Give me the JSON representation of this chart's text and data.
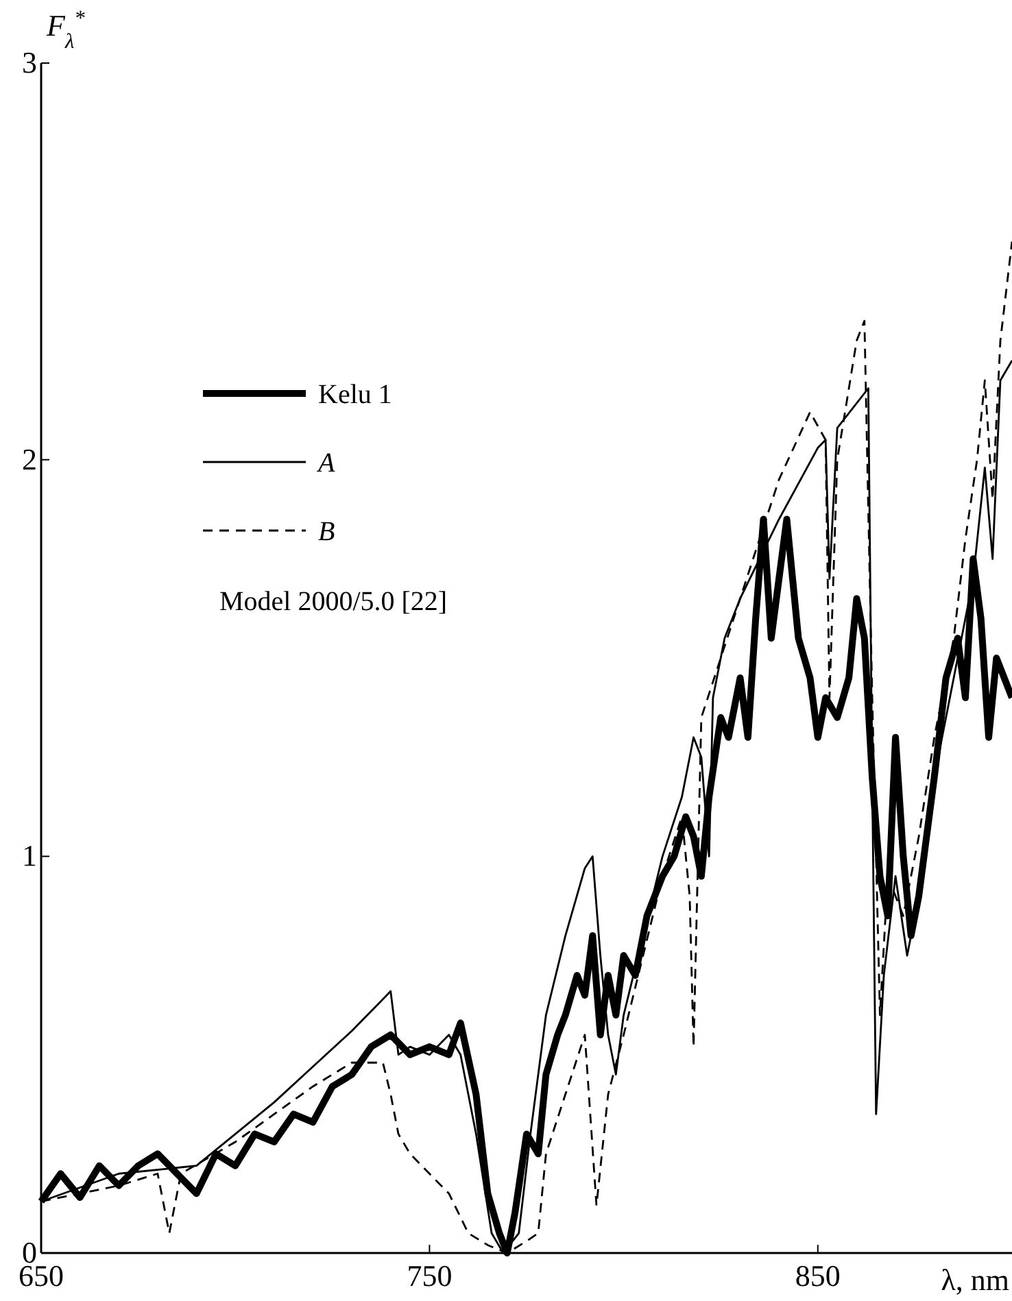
{
  "chart_data": {
    "type": "line",
    "xlabel": "λ, nm",
    "ylabel": "F$_{λ}$$^{*}$",
    "xlim": [
      650,
      900
    ],
    "ylim": [
      0,
      3
    ],
    "xticks": [
      650,
      750,
      850
    ],
    "yticks": [
      0,
      1,
      2,
      3
    ],
    "grid": false,
    "legend": "left",
    "marker": "none",
    "annotations": [
      "Model 2000/5.0 [22]"
    ],
    "series": [
      {
        "name": "Kelu 1",
        "color": "#000000",
        "line_style": "solid",
        "x": [
          650,
          655,
          660,
          665,
          670,
          675,
          680,
          685,
          690,
          695,
          700,
          705,
          710,
          715,
          720,
          725,
          730,
          735,
          740,
          745,
          750,
          755,
          758,
          762,
          765,
          768,
          770,
          772,
          775,
          778,
          780,
          783,
          785,
          788,
          790,
          792,
          794,
          796,
          798,
          800,
          803,
          806,
          810,
          813,
          816,
          818,
          820,
          822,
          825,
          827,
          830,
          832,
          834,
          836,
          838,
          840,
          842,
          845,
          848,
          850,
          852,
          855,
          858,
          860,
          862,
          864,
          866,
          868,
          870,
          872,
          874,
          876,
          878,
          880,
          883,
          886,
          888,
          890,
          892,
          894,
          896,
          900
        ],
        "values": [
          0.13,
          0.2,
          0.14,
          0.22,
          0.17,
          0.22,
          0.25,
          0.2,
          0.15,
          0.25,
          0.22,
          0.3,
          0.28,
          0.35,
          0.33,
          0.42,
          0.45,
          0.52,
          0.55,
          0.5,
          0.52,
          0.5,
          0.58,
          0.4,
          0.15,
          0.05,
          0.0,
          0.1,
          0.3,
          0.25,
          0.45,
          0.55,
          0.6,
          0.7,
          0.65,
          0.8,
          0.55,
          0.7,
          0.6,
          0.75,
          0.7,
          0.85,
          0.95,
          1.0,
          1.1,
          1.05,
          0.95,
          1.15,
          1.35,
          1.3,
          1.45,
          1.3,
          1.6,
          1.85,
          1.55,
          1.7,
          1.85,
          1.55,
          1.45,
          1.3,
          1.4,
          1.35,
          1.45,
          1.65,
          1.55,
          1.2,
          0.95,
          0.85,
          1.3,
          1.0,
          0.8,
          0.9,
          1.05,
          1.2,
          1.45,
          1.55,
          1.4,
          1.75,
          1.6,
          1.3,
          1.5,
          1.4
        ]
      },
      {
        "name": "A",
        "color": "#000000",
        "line_style": "solid",
        "x": [
          650,
          670,
          690,
          700,
          710,
          720,
          730,
          738,
          740,
          742,
          745,
          750,
          755,
          758,
          762,
          766,
          769,
          773,
          776,
          780,
          785,
          790,
          792,
          794,
          796,
          798,
          800,
          805,
          810,
          815,
          818,
          820,
          822,
          823,
          826,
          830,
          840,
          850,
          852,
          853,
          855,
          863,
          864,
          865,
          867,
          870,
          873,
          876,
          880,
          885,
          890,
          893,
          895,
          897,
          900
        ],
        "values": [
          0.13,
          0.2,
          0.22,
          0.3,
          0.38,
          0.47,
          0.56,
          0.64,
          0.66,
          0.5,
          0.52,
          0.5,
          0.55,
          0.5,
          0.3,
          0.05,
          0.0,
          0.05,
          0.3,
          0.6,
          0.8,
          0.97,
          1.0,
          0.75,
          0.55,
          0.45,
          0.6,
          0.8,
          1.0,
          1.15,
          1.3,
          1.25,
          1.0,
          1.4,
          1.55,
          1.65,
          1.85,
          2.03,
          2.05,
          1.7,
          2.08,
          2.18,
          1.2,
          0.35,
          0.7,
          0.95,
          0.75,
          0.9,
          1.2,
          1.45,
          1.7,
          1.98,
          1.75,
          2.2,
          2.25
        ]
      },
      {
        "name": "B",
        "color": "#000000",
        "line_style": "dashed",
        "x": [
          650,
          670,
          680,
          683,
          686,
          700,
          710,
          720,
          730,
          738,
          740,
          742,
          745,
          750,
          755,
          760,
          765,
          770,
          775,
          778,
          780,
          785,
          790,
          793,
          796,
          800,
          805,
          810,
          815,
          817,
          818,
          820,
          825,
          830,
          840,
          848,
          852,
          853,
          855,
          860,
          862,
          864,
          866,
          868,
          872,
          876,
          880,
          885,
          888,
          891,
          893,
          895,
          897,
          900
        ],
        "values": [
          0.13,
          0.17,
          0.2,
          0.05,
          0.2,
          0.28,
          0.35,
          0.42,
          0.48,
          0.48,
          0.4,
          0.3,
          0.25,
          0.2,
          0.15,
          0.05,
          0.02,
          0.0,
          0.03,
          0.05,
          0.25,
          0.4,
          0.55,
          0.12,
          0.4,
          0.55,
          0.75,
          0.95,
          1.1,
          0.9,
          0.52,
          1.35,
          1.5,
          1.65,
          1.95,
          2.12,
          2.05,
          1.4,
          2.0,
          2.3,
          2.35,
          1.4,
          0.6,
          0.95,
          0.85,
          1.05,
          1.3,
          1.55,
          1.8,
          2.0,
          2.2,
          1.9,
          2.3,
          2.55
        ]
      }
    ]
  }
}
